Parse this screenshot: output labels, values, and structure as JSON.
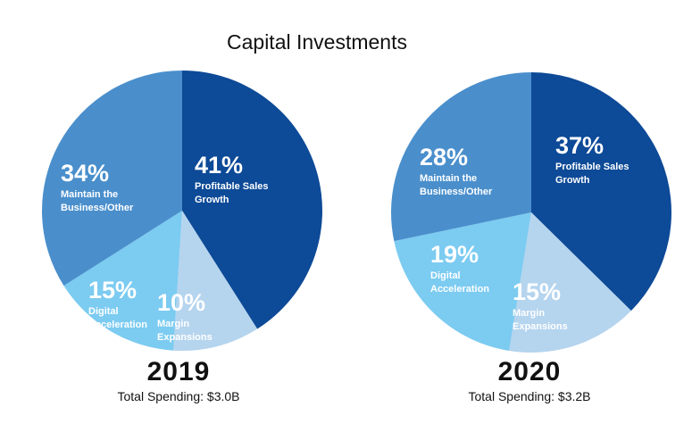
{
  "chart_data": {
    "type": "pie",
    "title": "Capital Investments",
    "charts": [
      {
        "year": "2019",
        "total": "Total Spending: $3.0B",
        "slices": [
          {
            "label": [
              "Profitable Sales",
              "Growth"
            ],
            "value": 41,
            "pct_label": "41%",
            "color": "#0d4a97"
          },
          {
            "label": [
              "Margin",
              "Expansions"
            ],
            "value": 10,
            "pct_label": "10%",
            "color": "#b5d4ee"
          },
          {
            "label": [
              "Digital",
              "Acceleration"
            ],
            "value": 15,
            "pct_label": "15%",
            "color": "#7ccbf1"
          },
          {
            "label": [
              "Maintain the",
              "Business/Other"
            ],
            "value": 34,
            "pct_label": "34%",
            "color": "#4a8fcc"
          }
        ]
      },
      {
        "year": "2020",
        "total": "Total Spending: $3.2B",
        "slices": [
          {
            "label": [
              "Profitable Sales",
              "Growth"
            ],
            "value": 37,
            "pct_label": "37%",
            "color": "#0d4a97"
          },
          {
            "label": [
              "Margin",
              "Expansions"
            ],
            "value": 15,
            "pct_label": "15%",
            "color": "#b5d4ee"
          },
          {
            "label": [
              "Digital",
              "Acceleration"
            ],
            "value": 19,
            "pct_label": "19%",
            "color": "#7ccbf1"
          },
          {
            "label": [
              "Maintain the",
              "Business/Other"
            ],
            "value": 28,
            "pct_label": "28%",
            "color": "#4a8fcc"
          }
        ]
      }
    ]
  }
}
